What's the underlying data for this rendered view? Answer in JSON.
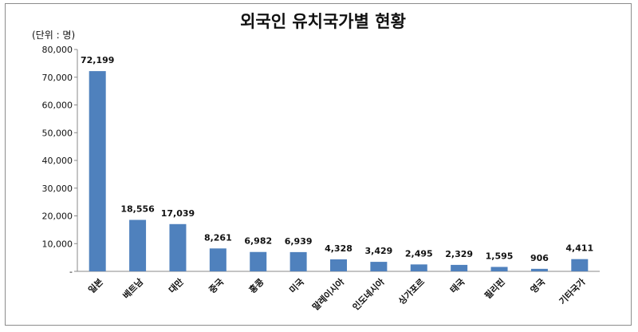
{
  "chart_data": {
    "type": "bar",
    "title": "외국인 유치국가별 현황",
    "unit_label": "(단위 : 명)",
    "categories": [
      "일본",
      "베트남",
      "대만",
      "중국",
      "홍콩",
      "미국",
      "말레이시아",
      "인도네시아",
      "싱가포르",
      "태국",
      "필리핀",
      "영국",
      "기타국가"
    ],
    "values": [
      72199,
      18556,
      17039,
      8261,
      6982,
      6939,
      4328,
      3429,
      2495,
      2329,
      1595,
      906,
      4411
    ],
    "data_labels": [
      "72,199",
      "18,556",
      "17,039",
      "8,261",
      "6,982",
      "6,939",
      "4,328",
      "3,429",
      "2,495",
      "2,329",
      "1,595",
      "906",
      "4,411"
    ],
    "ylim": [
      0,
      80000
    ],
    "y_ticks": [
      "-",
      "10,000",
      "20,000",
      "30,000",
      "40,000",
      "50,000",
      "60,000",
      "70,000",
      "80,000"
    ],
    "bar_color": "#4f81bd",
    "grid": false,
    "legend": "none"
  }
}
